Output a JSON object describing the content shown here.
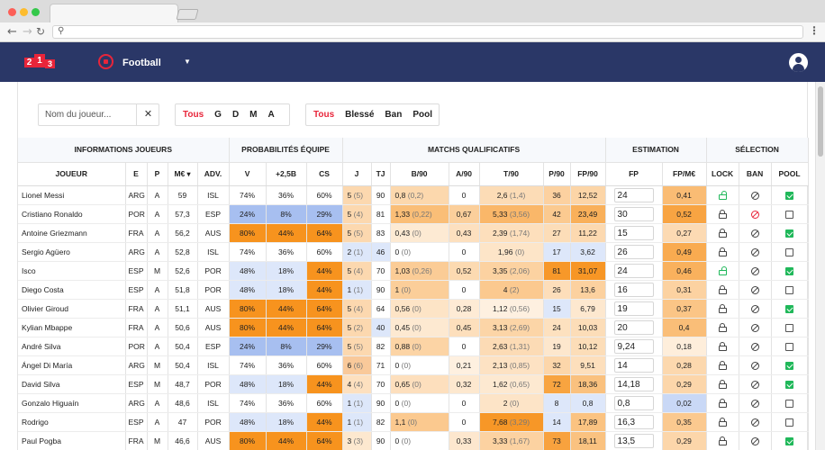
{
  "app": {
    "logo_digits": [
      "2",
      "1",
      "3"
    ],
    "sport": "Football",
    "colors": {
      "navbar": "#2a3767",
      "accent": "#e8253a",
      "check": "#20b85a"
    }
  },
  "search": {
    "placeholder": "Nom du joueur...",
    "value": ""
  },
  "filters": {
    "positions": [
      "Tous",
      "G",
      "D",
      "M",
      "A"
    ],
    "positions_active": "Tous",
    "status": [
      "Tous",
      "Blessé",
      "Ban",
      "Pool"
    ],
    "status_active": "Tous"
  },
  "table": {
    "groups": [
      "INFORMATIONS JOUEURS",
      "PROBABILITÉS ÉQUIPE",
      "MATCHS QUALIFICATIFS",
      "ESTIMATION",
      "SÉLECTION"
    ],
    "columns": [
      "JOUEUR",
      "E",
      "P",
      "M€",
      "ADV.",
      "V",
      "+2,5B",
      "CS",
      "J",
      "TJ",
      "B/90",
      "A/90",
      "T/90",
      "P/90",
      "FP/90",
      "FP",
      "FP/M€",
      "LOCK",
      "BAN",
      "POOL"
    ],
    "sort_column": "M€",
    "rows": [
      {
        "name": "Lionel Messi",
        "e": "ARG",
        "p": "A",
        "price": "59",
        "adv": "ISL",
        "v": "74%",
        "b25": "36%",
        "cs": "60%",
        "j": "5",
        "j_sub": "(5)",
        "tj": "90",
        "b90": "0,8",
        "b90_sub": "(0,2)",
        "a90": "0",
        "t90": "2,6",
        "t90_sub": "(1,4)",
        "p90": "36",
        "fp90": "12,52",
        "fp": "24",
        "fpm": "0,41",
        "lock": "open",
        "ban": "dark",
        "pool": true
      },
      {
        "name": "Cristiano Ronaldo",
        "e": "POR",
        "p": "A",
        "price": "57,3",
        "adv": "ESP",
        "v": "24%",
        "b25": "8%",
        "cs": "29%",
        "j": "5",
        "j_sub": "(4)",
        "tj": "81",
        "b90": "1,33",
        "b90_sub": "(0,22)",
        "a90": "0,67",
        "t90": "5,33",
        "t90_sub": "(3,56)",
        "p90": "42",
        "fp90": "23,49",
        "fp": "30",
        "fpm": "0,52",
        "lock": "closed",
        "ban": "red",
        "pool": false
      },
      {
        "name": "Antoine Griezmann",
        "e": "FRA",
        "p": "A",
        "price": "56,2",
        "adv": "AUS",
        "v": "80%",
        "b25": "44%",
        "cs": "64%",
        "j": "5",
        "j_sub": "(5)",
        "tj": "83",
        "b90": "0,43",
        "b90_sub": "(0)",
        "a90": "0,43",
        "t90": "2,39",
        "t90_sub": "(1,74)",
        "p90": "27",
        "fp90": "11,22",
        "fp": "15",
        "fpm": "0,27",
        "lock": "closed",
        "ban": "dark",
        "pool": true
      },
      {
        "name": "Sergio Agüero",
        "e": "ARG",
        "p": "A",
        "price": "52,8",
        "adv": "ISL",
        "v": "74%",
        "b25": "36%",
        "cs": "60%",
        "j": "2",
        "j_sub": "(1)",
        "tj": "46",
        "b90": "0",
        "b90_sub": "(0)",
        "a90": "0",
        "t90": "1,96",
        "t90_sub": "(0)",
        "p90": "17",
        "fp90": "3,62",
        "fp": "26",
        "fpm": "0,49",
        "lock": "closed",
        "ban": "dark",
        "pool": false
      },
      {
        "name": "Isco",
        "e": "ESP",
        "p": "M",
        "price": "52,6",
        "adv": "POR",
        "v": "48%",
        "b25": "18%",
        "cs": "44%",
        "j": "5",
        "j_sub": "(4)",
        "tj": "70",
        "b90": "1,03",
        "b90_sub": "(0,26)",
        "a90": "0,52",
        "t90": "3,35",
        "t90_sub": "(2,06)",
        "p90": "81",
        "fp90": "31,07",
        "fp": "24",
        "fpm": "0,46",
        "lock": "open",
        "ban": "dark",
        "pool": true
      },
      {
        "name": "Diego Costa",
        "e": "ESP",
        "p": "A",
        "price": "51,8",
        "adv": "POR",
        "v": "48%",
        "b25": "18%",
        "cs": "44%",
        "j": "1",
        "j_sub": "(1)",
        "tj": "90",
        "b90": "1",
        "b90_sub": "(0)",
        "a90": "0",
        "t90": "4",
        "t90_sub": "(2)",
        "p90": "26",
        "fp90": "13,6",
        "fp": "16",
        "fpm": "0,31",
        "lock": "closed",
        "ban": "dark",
        "pool": false
      },
      {
        "name": "Olivier Giroud",
        "e": "FRA",
        "p": "A",
        "price": "51,1",
        "adv": "AUS",
        "v": "80%",
        "b25": "44%",
        "cs": "64%",
        "j": "5",
        "j_sub": "(4)",
        "tj": "64",
        "b90": "0,56",
        "b90_sub": "(0)",
        "a90": "0,28",
        "t90": "1,12",
        "t90_sub": "(0,56)",
        "p90": "15",
        "fp90": "6,79",
        "fp": "19",
        "fpm": "0,37",
        "lock": "closed",
        "ban": "dark",
        "pool": true
      },
      {
        "name": "Kylian Mbappe",
        "e": "FRA",
        "p": "A",
        "price": "50,6",
        "adv": "AUS",
        "v": "80%",
        "b25": "44%",
        "cs": "64%",
        "j": "5",
        "j_sub": "(2)",
        "tj": "40",
        "b90": "0,45",
        "b90_sub": "(0)",
        "a90": "0,45",
        "t90": "3,13",
        "t90_sub": "(2,69)",
        "p90": "24",
        "fp90": "10,03",
        "fp": "20",
        "fpm": "0,4",
        "lock": "closed",
        "ban": "dark",
        "pool": false
      },
      {
        "name": "André Silva",
        "e": "POR",
        "p": "A",
        "price": "50,4",
        "adv": "ESP",
        "v": "24%",
        "b25": "8%",
        "cs": "29%",
        "j": "5",
        "j_sub": "(5)",
        "tj": "82",
        "b90": "0,88",
        "b90_sub": "(0)",
        "a90": "0",
        "t90": "2,63",
        "t90_sub": "(1,31)",
        "p90": "19",
        "fp90": "10,12",
        "fp": "9,24",
        "fpm": "0,18",
        "lock": "closed",
        "ban": "dark",
        "pool": false
      },
      {
        "name": "Ángel Di María",
        "e": "ARG",
        "p": "M",
        "price": "50,4",
        "adv": "ISL",
        "v": "74%",
        "b25": "36%",
        "cs": "60%",
        "j": "6",
        "j_sub": "(6)",
        "tj": "71",
        "b90": "0",
        "b90_sub": "(0)",
        "a90": "0,21",
        "t90": "2,13",
        "t90_sub": "(0,85)",
        "p90": "32",
        "fp90": "9,51",
        "fp": "14",
        "fpm": "0,28",
        "lock": "closed",
        "ban": "dark",
        "pool": true
      },
      {
        "name": "David Silva",
        "e": "ESP",
        "p": "M",
        "price": "48,7",
        "adv": "POR",
        "v": "48%",
        "b25": "18%",
        "cs": "44%",
        "j": "4",
        "j_sub": "(4)",
        "tj": "70",
        "b90": "0,65",
        "b90_sub": "(0)",
        "a90": "0,32",
        "t90": "1,62",
        "t90_sub": "(0,65)",
        "p90": "72",
        "fp90": "18,36",
        "fp": "14,18",
        "fpm": "0,29",
        "lock": "closed",
        "ban": "dark",
        "pool": true
      },
      {
        "name": "Gonzalo Higuaín",
        "e": "ARG",
        "p": "A",
        "price": "48,6",
        "adv": "ISL",
        "v": "74%",
        "b25": "36%",
        "cs": "60%",
        "j": "1",
        "j_sub": "(1)",
        "tj": "90",
        "b90": "0",
        "b90_sub": "(0)",
        "a90": "0",
        "t90": "2",
        "t90_sub": "(0)",
        "p90": "8",
        "fp90": "0,8",
        "fp": "0,8",
        "fpm": "0,02",
        "lock": "closed",
        "ban": "dark",
        "pool": false
      },
      {
        "name": "Rodrigo",
        "e": "ESP",
        "p": "A",
        "price": "47",
        "adv": "POR",
        "v": "48%",
        "b25": "18%",
        "cs": "44%",
        "j": "1",
        "j_sub": "(1)",
        "tj": "82",
        "b90": "1,1",
        "b90_sub": "(0)",
        "a90": "0",
        "t90": "7,68",
        "t90_sub": "(3,29)",
        "p90": "14",
        "fp90": "17,89",
        "fp": "16,3",
        "fpm": "0,35",
        "lock": "closed",
        "ban": "dark",
        "pool": false
      },
      {
        "name": "Paul Pogba",
        "e": "FRA",
        "p": "M",
        "price": "46,6",
        "adv": "AUS",
        "v": "80%",
        "b25": "44%",
        "cs": "64%",
        "j": "3",
        "j_sub": "(3)",
        "tj": "90",
        "b90": "0",
        "b90_sub": "(0)",
        "a90": "0,33",
        "t90": "3,33",
        "t90_sub": "(1,67)",
        "p90": "73",
        "fp90": "18,11",
        "fp": "13,5",
        "fpm": "0,29",
        "lock": "closed",
        "ban": "dark",
        "pool": true
      }
    ]
  }
}
